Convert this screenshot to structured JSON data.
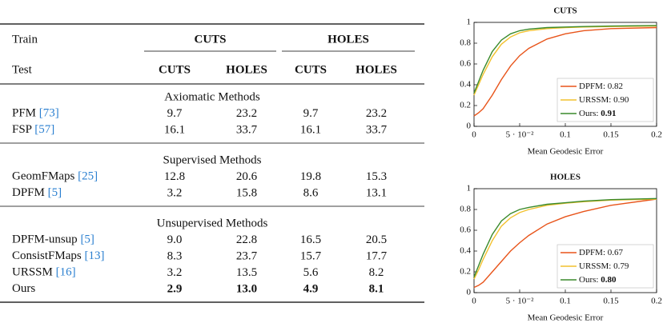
{
  "table": {
    "header": {
      "train_label": "Train",
      "test_label": "Test",
      "train_groups": [
        "CUTS",
        "HOLES"
      ],
      "test_cols": [
        "CUTS",
        "HOLES",
        "CUTS",
        "HOLES"
      ]
    },
    "sections": [
      {
        "title": "Axiomatic Methods",
        "rows": [
          {
            "method": "PFM",
            "ref": "[73]",
            "values": [
              "9.7",
              "23.2",
              "9.7",
              "23.2"
            ]
          },
          {
            "method": "FSP",
            "ref": "[57]",
            "values": [
              "16.1",
              "33.7",
              "16.1",
              "33.7"
            ]
          }
        ]
      },
      {
        "title": "Supervised Methods",
        "rows": [
          {
            "method": "GeomFMaps",
            "ref": "[25]",
            "values": [
              "12.8",
              "20.6",
              "19.8",
              "15.3"
            ]
          },
          {
            "method": "DPFM",
            "ref": "[5]",
            "values": [
              "3.2",
              "15.8",
              "8.6",
              "13.1"
            ]
          }
        ]
      },
      {
        "title": "Unsupervised Methods",
        "rows": [
          {
            "method": "DPFM-unsup",
            "ref": "[5]",
            "values": [
              "9.0",
              "22.8",
              "16.5",
              "20.5"
            ]
          },
          {
            "method": "ConsistFMaps",
            "ref": "[13]",
            "values": [
              "8.3",
              "23.7",
              "15.7",
              "17.7"
            ]
          },
          {
            "method": "URSSM",
            "ref": "[16]",
            "values": [
              "3.2",
              "13.5",
              "5.6",
              "8.2"
            ]
          },
          {
            "method": "Ours",
            "values": [
              "2.9",
              "13.0",
              "4.9",
              "8.1"
            ],
            "bold": true
          }
        ]
      }
    ]
  },
  "chart_data": [
    {
      "type": "line",
      "title": "CUTS",
      "x_label": "Mean Geodesic Error",
      "x": [
        0,
        0.005,
        0.01,
        0.02,
        0.03,
        0.04,
        0.05,
        0.06,
        0.08,
        0.1,
        0.12,
        0.15,
        0.2
      ],
      "series": [
        {
          "name": "DPFM:",
          "score": "0.82",
          "color": "#e8541a",
          "values": [
            0.1,
            0.13,
            0.17,
            0.3,
            0.45,
            0.58,
            0.68,
            0.75,
            0.84,
            0.89,
            0.92,
            0.94,
            0.95
          ]
        },
        {
          "name": "URSSM:",
          "score": "0.90",
          "color": "#f2c12e",
          "values": [
            0.3,
            0.4,
            0.5,
            0.67,
            0.79,
            0.86,
            0.9,
            0.92,
            0.94,
            0.95,
            0.955,
            0.96,
            0.965
          ]
        },
        {
          "name": "Ours:",
          "score": "0.91",
          "score_bold": true,
          "color": "#3a8a2c",
          "values": [
            0.32,
            0.43,
            0.54,
            0.72,
            0.83,
            0.89,
            0.92,
            0.935,
            0.95,
            0.955,
            0.96,
            0.965,
            0.97
          ]
        }
      ],
      "xlim": [
        0,
        0.2
      ],
      "xticks": [
        0,
        {
          "value": 0.05,
          "label": "5 · 10⁻²"
        },
        0.1,
        0.15,
        0.2
      ],
      "ylim": [
        0,
        1
      ],
      "yticks": [
        0,
        0.2,
        0.4,
        0.6,
        0.8,
        1
      ],
      "legend": "lower right"
    },
    {
      "type": "line",
      "title": "HOLES",
      "x_label": "Mean Geodesic Error",
      "x": [
        0,
        0.005,
        0.01,
        0.02,
        0.03,
        0.04,
        0.05,
        0.06,
        0.08,
        0.1,
        0.12,
        0.15,
        0.2
      ],
      "series": [
        {
          "name": "DPFM:",
          "score": "0.67",
          "color": "#e8541a",
          "values": [
            0.05,
            0.07,
            0.1,
            0.2,
            0.3,
            0.4,
            0.48,
            0.55,
            0.66,
            0.73,
            0.78,
            0.84,
            0.9
          ]
        },
        {
          "name": "URSSM:",
          "score": "0.79",
          "color": "#f2c12e",
          "values": [
            0.13,
            0.22,
            0.32,
            0.5,
            0.64,
            0.72,
            0.77,
            0.8,
            0.84,
            0.86,
            0.875,
            0.89,
            0.9
          ]
        },
        {
          "name": "Ours:",
          "score": "0.80",
          "score_bold": true,
          "color": "#3a8a2c",
          "values": [
            0.15,
            0.26,
            0.37,
            0.56,
            0.69,
            0.76,
            0.8,
            0.82,
            0.85,
            0.865,
            0.88,
            0.895,
            0.905
          ]
        }
      ],
      "xlim": [
        0,
        0.2
      ],
      "xticks": [
        0,
        {
          "value": 0.05,
          "label": "5 · 10⁻²"
        },
        0.1,
        0.15,
        0.2
      ],
      "ylim": [
        0,
        1
      ],
      "yticks": [
        0,
        0.2,
        0.4,
        0.6,
        0.8,
        1
      ],
      "legend": "lower right"
    }
  ]
}
